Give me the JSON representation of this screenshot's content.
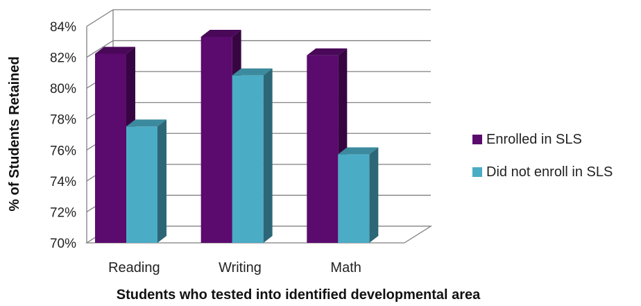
{
  "chart_data": {
    "type": "bar",
    "title": "",
    "xlabel": "Students who tested into identified developmental area",
    "ylabel": "% of Students Retained",
    "categories": [
      "Reading",
      "Writing",
      "Math"
    ],
    "series": [
      {
        "name": "Enrolled in SLS",
        "values": [
          81.6,
          82.7,
          81.5
        ],
        "color": "#5b0a6e"
      },
      {
        "name": "Did not enroll in SLS",
        "values": [
          76.9,
          80.2,
          75.1
        ],
        "color": "#4bacc6"
      }
    ],
    "ylim": [
      70,
      84
    ],
    "yticks": [
      70,
      72,
      74,
      76,
      78,
      80,
      82,
      84
    ],
    "ytick_labels": [
      "70%",
      "72%",
      "74%",
      "76%",
      "78%",
      "80%",
      "82%",
      "84%"
    ],
    "grid": true,
    "legend_position": "right"
  }
}
